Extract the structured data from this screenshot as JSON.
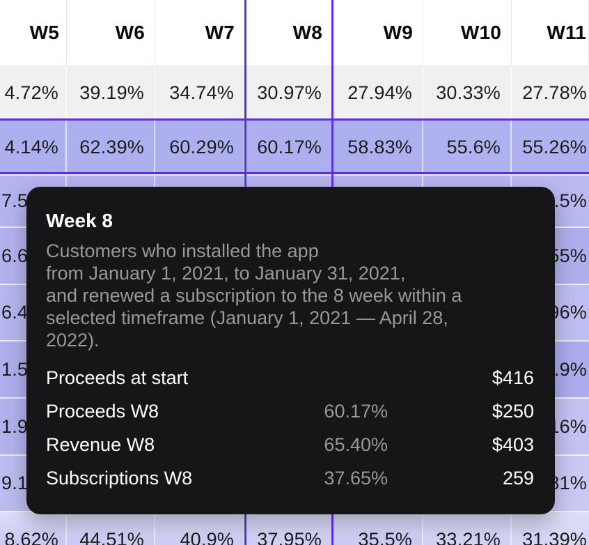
{
  "colors": {
    "accent_purple": "#5b2ee8",
    "tooltip_bg": "#161618",
    "tooltip_text": "#ffffff",
    "tooltip_muted": "#97979c",
    "table_text": "#1c1c1e",
    "header_bg": "#ffffff"
  },
  "table": {
    "columns": [
      "W5",
      "W6",
      "W7",
      "W8",
      "W9",
      "W10",
      "W11"
    ],
    "highlighted_column": "W8",
    "rows": [
      {
        "cells": [
          {
            "text": "4.72%",
            "bg": "#f0f0f1"
          },
          {
            "text": "39.19%",
            "bg": "#f0f0f1"
          },
          {
            "text": "34.74%",
            "bg": "#f0f0f1"
          },
          {
            "text": "30.97%",
            "bg": "#f0f0f1"
          },
          {
            "text": "27.94%",
            "bg": "#f0f0f1"
          },
          {
            "text": "30.33%",
            "bg": "#f0f0f1"
          },
          {
            "text": "27.78%",
            "bg": "#f0f0f1"
          }
        ]
      },
      {
        "cells": [
          {
            "text": "4.14%",
            "bg": "#aeafee"
          },
          {
            "text": "62.39%",
            "bg": "#aeafee"
          },
          {
            "text": "60.29%",
            "bg": "#aeafee"
          },
          {
            "text": "60.17%",
            "bg": "#aeafee"
          },
          {
            "text": "58.83%",
            "bg": "#aeafee"
          },
          {
            "text": "55.6%",
            "bg": "#b0b1ef"
          },
          {
            "text": "55.26%",
            "bg": "#b0b1ef"
          }
        ]
      },
      {
        "cells": [
          {
            "text": "7.5",
            "bg": "#b5b4ef",
            "align": "left"
          },
          {
            "text": "",
            "bg": "#b5b4ef"
          },
          {
            "text": "",
            "bg": "#b5b4ef"
          },
          {
            "text": "",
            "bg": "#b5b4ef"
          },
          {
            "text": "",
            "bg": "#b5b4ef"
          },
          {
            "text": "",
            "bg": "#b7b6f0"
          },
          {
            "text": ".5%",
            "bg": "#b9b8f1"
          }
        ]
      },
      {
        "cells": [
          {
            "text": "6.6",
            "bg": "#b3b2ee",
            "align": "left"
          },
          {
            "text": "",
            "bg": "#b3b2ee"
          },
          {
            "text": "",
            "bg": "#b3b2ee"
          },
          {
            "text": "",
            "bg": "#b3b2ee"
          },
          {
            "text": "",
            "bg": "#b1b0ee"
          },
          {
            "text": "",
            "bg": "#b1b0ee"
          },
          {
            "text": "55%",
            "bg": "#b0afee"
          }
        ]
      },
      {
        "cells": [
          {
            "text": "6.4",
            "bg": "#b7b6f0",
            "align": "left"
          },
          {
            "text": "",
            "bg": "#b7b6f0"
          },
          {
            "text": "",
            "bg": "#b8b7f0"
          },
          {
            "text": "",
            "bg": "#b9b8f0"
          },
          {
            "text": "",
            "bg": "#bbbaf1"
          },
          {
            "text": "",
            "bg": "#bdbcf1"
          },
          {
            "text": "96%",
            "bg": "#bfbef2"
          }
        ]
      },
      {
        "cells": [
          {
            "text": "1.5",
            "bg": "#b0afee",
            "align": "left"
          },
          {
            "text": "",
            "bg": "#b0afee"
          },
          {
            "text": "",
            "bg": "#afaeee"
          },
          {
            "text": "",
            "bg": "#aeadee"
          },
          {
            "text": "",
            "bg": "#aeadee"
          },
          {
            "text": "",
            "bg": "#adacee"
          },
          {
            "text": ".9%",
            "bg": "#adacee"
          }
        ]
      },
      {
        "cells": [
          {
            "text": "1.9",
            "bg": "#b3b2ee",
            "align": "left"
          },
          {
            "text": "",
            "bg": "#b6b5ef"
          },
          {
            "text": "",
            "bg": "#b9b8f0"
          },
          {
            "text": "",
            "bg": "#bcbbf1"
          },
          {
            "text": "",
            "bg": "#bfbef2"
          },
          {
            "text": "",
            "bg": "#c1c0f2"
          },
          {
            "text": "16%",
            "bg": "#c3c2f3"
          }
        ]
      },
      {
        "cells": [
          {
            "text": "9.1",
            "bg": "#bdbcf1",
            "align": "left"
          },
          {
            "text": "",
            "bg": "#c0bff2"
          },
          {
            "text": "",
            "bg": "#c2c1f2"
          },
          {
            "text": "",
            "bg": "#c4c3f3"
          },
          {
            "text": "",
            "bg": "#c6c6f3"
          },
          {
            "text": "",
            "bg": "#c8c8f4"
          },
          {
            "text": "81%",
            "bg": "#c9c9f4"
          }
        ]
      },
      {
        "fade_top": true,
        "cells": [
          {
            "text": "8.62%",
            "bg": "#c6c5f3"
          },
          {
            "text": "44.51%",
            "bg": "#c9c8f4"
          },
          {
            "text": "40.9%",
            "bg": "#cbcaf4"
          },
          {
            "text": "37.95%",
            "bg": "#cecdf5"
          },
          {
            "text": "35.5%",
            "bg": "#c8c8f4"
          },
          {
            "text": "33.21%",
            "bg": "#d0d0f6"
          },
          {
            "text": "31.39%",
            "bg": "#d3d3f6"
          }
        ]
      }
    ]
  },
  "tooltip": {
    "title": "Week 8",
    "description": "Customers who installed the app\nfrom January 1, 2021, to January 31, 2021,\nand renewed a subscription to the 8 week within a\nselected timeframe (January 1, 2021 — April 28,\n2022).",
    "stats": [
      {
        "label": "Proceeds at start",
        "percent": "",
        "value": "$416"
      },
      {
        "label": "Proceeds W8",
        "percent": "60.17%",
        "value": "$250"
      },
      {
        "label": "Revenue W8",
        "percent": "65.40%",
        "value": "$403"
      },
      {
        "label": "Subscriptions W8",
        "percent": "37.65%",
        "value": "259"
      }
    ]
  }
}
